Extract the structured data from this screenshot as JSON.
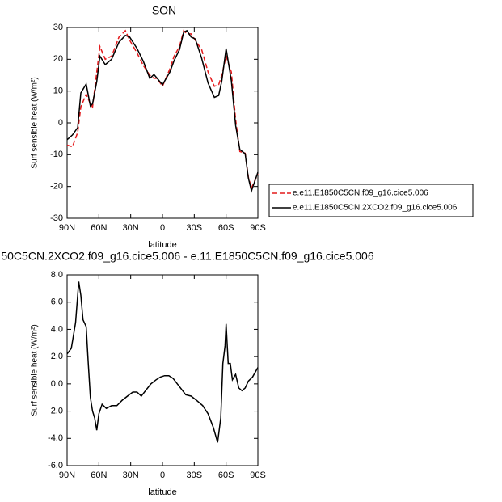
{
  "chart_data": [
    {
      "type": "line",
      "title": "SON",
      "xlabel": "latitude",
      "ylabel": "Surf sensible heat (W/m²)",
      "x": [
        90,
        85,
        80,
        77,
        72,
        68,
        66,
        62,
        59,
        54,
        48,
        41,
        35,
        31,
        24,
        18,
        12,
        8,
        5,
        0,
        -7,
        -11,
        -16,
        -20,
        -23,
        -27,
        -31,
        -37,
        -43,
        -49,
        -53,
        -56,
        -60,
        -65,
        -69,
        -73,
        -78,
        -81,
        -84,
        -90
      ],
      "series": [
        {
          "name": "e.e11.E1850C5CN.f09_g16.cice5.006",
          "color": "#e41a1c",
          "dash": true,
          "values": [
            -7,
            -7.5,
            -3,
            5,
            9,
            6,
            5,
            16,
            24,
            20,
            21,
            27,
            29,
            26,
            22,
            18,
            15,
            14,
            14,
            11.5,
            17,
            21,
            24,
            29,
            28,
            28,
            26,
            23,
            16,
            11.5,
            12,
            15,
            21,
            16,
            1,
            -9,
            -9.5,
            -17,
            -20.5,
            -16
          ]
        },
        {
          "name": "e.e11.E1850C5CN.2XCO2.f09_g16.cice5.006",
          "color": "#000000",
          "dash": false,
          "values": [
            -5.3,
            -3.8,
            -1.5,
            9.4,
            12.2,
            5.3,
            6,
            13,
            21,
            18.3,
            20,
            25.4,
            27.5,
            27,
            23.4,
            19.3,
            14,
            15.2,
            14,
            12,
            16,
            19.6,
            23,
            28.5,
            29,
            27,
            26.4,
            20.3,
            12.5,
            8,
            8.6,
            13.2,
            23.4,
            13.2,
            -0.8,
            -8.4,
            -9.7,
            -17.3,
            -21.4,
            -15.5
          ]
        }
      ],
      "xlim": [
        90,
        -90
      ],
      "xticks": [
        {
          "value": 90,
          "label": "90N"
        },
        {
          "value": 60,
          "label": "60N"
        },
        {
          "value": 30,
          "label": "30N"
        },
        0,
        {
          "value": -30,
          "label": "30S"
        },
        {
          "value": -60,
          "label": "60S"
        },
        {
          "value": -90,
          "label": "90S"
        }
      ],
      "ylim": [
        -30,
        30
      ],
      "yticks": [
        -30,
        -20,
        -10,
        0,
        10,
        20,
        30
      ],
      "legend": "right"
    },
    {
      "type": "line",
      "title": "50C5CN.2XCO2.f09_g16.cice5.006 - e.11.E1850C5CN.f09_g16.cice5.006",
      "xlabel": "latitude",
      "ylabel": "Surf sensible heat (W/m²)",
      "x": [
        90,
        86,
        82,
        79,
        77,
        75,
        72,
        70,
        68,
        66,
        64,
        62,
        60,
        57,
        53,
        48,
        43,
        38,
        33,
        28,
        24,
        20,
        16,
        11,
        6,
        2,
        -2,
        -6,
        -10,
        -14,
        -18,
        -22,
        -27,
        -32,
        -38,
        -43,
        -48,
        -52,
        -55,
        -57,
        -59,
        -60,
        -62,
        -64,
        -66,
        -69,
        -72,
        -75,
        -78,
        -81,
        -85,
        -90
      ],
      "series": [
        {
          "color": "#000000",
          "dash": false,
          "values": [
            2.2,
            2.6,
            4.5,
            7.5,
            6.5,
            4.7,
            4.2,
            1.5,
            -1.0,
            -2.0,
            -2.5,
            -3.4,
            -2.2,
            -1.5,
            -1.8,
            -1.6,
            -1.6,
            -1.2,
            -0.9,
            -0.6,
            -0.6,
            -0.9,
            -0.5,
            0.0,
            0.3,
            0.5,
            0.6,
            0.6,
            0.4,
            0.0,
            -0.4,
            -0.8,
            -0.9,
            -1.2,
            -1.6,
            -2.2,
            -3.2,
            -4.3,
            -2.5,
            1.5,
            2.8,
            4.4,
            1.5,
            1.5,
            0.3,
            0.7,
            -0.3,
            -0.5,
            -0.3,
            0.2,
            0.5,
            1.2
          ]
        }
      ],
      "xlim": [
        90,
        -90
      ],
      "xticks": [
        {
          "value": 90,
          "label": "90N"
        },
        {
          "value": 60,
          "label": "60N"
        },
        {
          "value": 30,
          "label": "30N"
        },
        0,
        {
          "value": -30,
          "label": "30S"
        },
        {
          "value": -60,
          "label": "60S"
        },
        {
          "value": -90,
          "label": "90S"
        }
      ],
      "ylim": [
        -6,
        8
      ],
      "yticks": [
        {
          "value": -6,
          "label": "-6.0"
        },
        {
          "value": -4,
          "label": "-4.0"
        },
        {
          "value": -2,
          "label": "-2.0"
        },
        {
          "value": 0,
          "label": "0.0"
        },
        {
          "value": 2,
          "label": "2.0"
        },
        {
          "value": 4,
          "label": "4.0"
        },
        {
          "value": 6,
          "label": "6.0"
        },
        {
          "value": 8,
          "label": "8.0"
        }
      ]
    }
  ]
}
